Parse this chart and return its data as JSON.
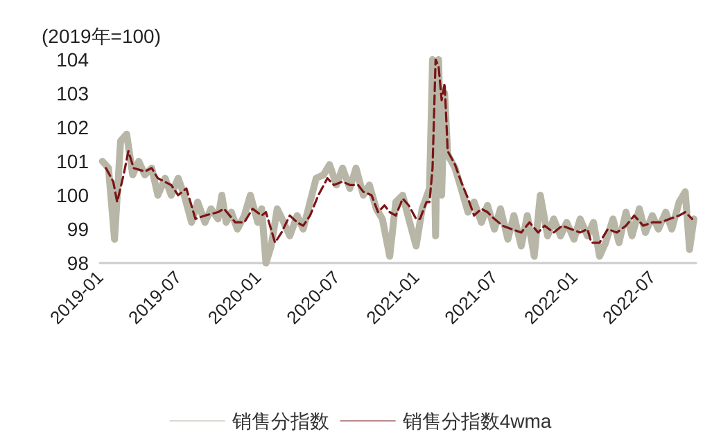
{
  "chart_data": {
    "type": "line",
    "ylabel": "(2019年=100)",
    "xlim": [
      "2019-01-01",
      "2022-10-10"
    ],
    "xticks": [
      "2019-01",
      "2019-07",
      "2020-01",
      "2020-07",
      "2021-01",
      "2021-07",
      "2022-01",
      "2022-07"
    ],
    "ylim": [
      98,
      104
    ],
    "yticks": [
      98,
      99,
      100,
      101,
      102,
      103,
      104
    ],
    "grid": false,
    "legend": "bottom",
    "marker": "none",
    "series": [
      {
        "name": "销售分指数",
        "color": "#b8b6a6",
        "line_style": "solid",
        "x": [
          "2019-01-07",
          "2019-01-21",
          "2019-02-04",
          "2019-02-18",
          "2019-03-04",
          "2019-03-18",
          "2019-04-01",
          "2019-04-15",
          "2019-05-01",
          "2019-05-15",
          "2019-06-01",
          "2019-06-15",
          "2019-07-01",
          "2019-07-15",
          "2019-08-01",
          "2019-08-15",
          "2019-09-01",
          "2019-09-15",
          "2019-10-01",
          "2019-10-10",
          "2019-10-20",
          "2019-11-01",
          "2019-11-15",
          "2019-12-01",
          "2019-12-15",
          "2020-01-01",
          "2020-01-10",
          "2020-01-20",
          "2020-02-01",
          "2020-02-15",
          "2020-03-01",
          "2020-03-15",
          "2020-04-01",
          "2020-04-15",
          "2020-05-01",
          "2020-05-15",
          "2020-06-01",
          "2020-06-15",
          "2020-07-01",
          "2020-07-15",
          "2020-08-01",
          "2020-08-15",
          "2020-09-01",
          "2020-09-15",
          "2020-10-01",
          "2020-10-15",
          "2020-11-01",
          "2020-11-15",
          "2020-12-01",
          "2020-12-15",
          "2021-01-01",
          "2021-01-15",
          "2021-02-01",
          "2021-02-08",
          "2021-02-15",
          "2021-02-22",
          "2021-03-01",
          "2021-03-08",
          "2021-03-15",
          "2021-04-01",
          "2021-04-15",
          "2021-05-01",
          "2021-05-15",
          "2021-06-01",
          "2021-06-15",
          "2021-07-01",
          "2021-07-15",
          "2021-08-01",
          "2021-08-15",
          "2021-09-01",
          "2021-09-15",
          "2021-10-01",
          "2021-10-15",
          "2021-11-01",
          "2021-11-15",
          "2021-12-01",
          "2021-12-15",
          "2022-01-01",
          "2022-01-15",
          "2022-02-01",
          "2022-02-15",
          "2022-03-01",
          "2022-03-15",
          "2022-04-01",
          "2022-04-15",
          "2022-05-01",
          "2022-05-15",
          "2022-06-01",
          "2022-06-15",
          "2022-07-01",
          "2022-07-15",
          "2022-08-01",
          "2022-08-15",
          "2022-09-01",
          "2022-09-15",
          "2022-09-25",
          "2022-10-05"
        ],
        "values": [
          101.0,
          100.8,
          98.7,
          101.6,
          101.8,
          100.6,
          101.0,
          100.6,
          100.8,
          100.0,
          100.5,
          100.0,
          100.5,
          100.0,
          99.2,
          99.8,
          99.2,
          99.6,
          99.3,
          100.0,
          99.2,
          99.5,
          99.0,
          99.4,
          100.0,
          99.2,
          99.6,
          98.0,
          98.5,
          99.6,
          99.2,
          98.8,
          99.4,
          99.0,
          99.8,
          100.5,
          100.6,
          100.9,
          100.3,
          100.8,
          100.2,
          100.8,
          100.0,
          100.3,
          99.6,
          99.3,
          98.2,
          99.8,
          100.0,
          99.3,
          98.5,
          99.6,
          100.2,
          104.0,
          98.8,
          104.0,
          100.0,
          103.0,
          101.2,
          100.8,
          100.2,
          99.5,
          99.8,
          99.2,
          99.7,
          99.0,
          99.6,
          98.7,
          99.4,
          98.5,
          99.4,
          98.2,
          100.0,
          98.8,
          99.3,
          98.8,
          99.2,
          98.7,
          99.3,
          98.8,
          99.2,
          98.2,
          98.6,
          99.3,
          98.6,
          99.5,
          98.8,
          99.6,
          98.9,
          99.4,
          99.0,
          99.5,
          99.0,
          99.8,
          100.1,
          98.4,
          99.3
        ]
      },
      {
        "name": "销售分指数4wma",
        "color": "#7b1416",
        "line_style": "dashed",
        "x": [
          "2019-01-15",
          "2019-02-01",
          "2019-02-10",
          "2019-02-25",
          "2019-03-08",
          "2019-03-20",
          "2019-04-15",
          "2019-05-01",
          "2019-05-15",
          "2019-06-15",
          "2019-07-01",
          "2019-07-20",
          "2019-08-10",
          "2019-09-01",
          "2019-10-01",
          "2019-10-15",
          "2019-11-10",
          "2019-12-01",
          "2019-12-20",
          "2020-01-10",
          "2020-01-20",
          "2020-02-10",
          "2020-02-25",
          "2020-03-15",
          "2020-04-01",
          "2020-04-15",
          "2020-05-01",
          "2020-05-20",
          "2020-06-10",
          "2020-06-25",
          "2020-07-15",
          "2020-08-01",
          "2020-08-20",
          "2020-09-01",
          "2020-09-20",
          "2020-10-05",
          "2020-10-20",
          "2020-11-01",
          "2020-11-15",
          "2020-12-01",
          "2020-12-15",
          "2021-01-01",
          "2021-01-10",
          "2021-01-25",
          "2021-02-01",
          "2021-02-08",
          "2021-02-15",
          "2021-02-22",
          "2021-03-01",
          "2021-03-08",
          "2021-03-15",
          "2021-04-01",
          "2021-04-15",
          "2021-05-01",
          "2021-05-15",
          "2021-06-01",
          "2021-06-15",
          "2021-07-01",
          "2021-07-20",
          "2021-08-10",
          "2021-09-01",
          "2021-09-20",
          "2021-10-10",
          "2021-10-25",
          "2021-11-15",
          "2021-12-05",
          "2021-12-25",
          "2022-01-15",
          "2022-02-01",
          "2022-02-10",
          "2022-03-01",
          "2022-03-20",
          "2022-04-10",
          "2022-05-01",
          "2022-05-20",
          "2022-06-10",
          "2022-07-01",
          "2022-07-20",
          "2022-08-10",
          "2022-09-01",
          "2022-09-15",
          "2022-10-01"
        ],
        "values": [
          100.8,
          100.4,
          99.8,
          100.6,
          101.3,
          100.8,
          100.7,
          100.8,
          100.5,
          100.3,
          100.0,
          100.2,
          99.3,
          99.4,
          99.5,
          99.6,
          99.2,
          99.2,
          99.6,
          99.4,
          99.5,
          98.6,
          98.9,
          99.4,
          99.2,
          99.1,
          99.4,
          100.0,
          100.5,
          100.3,
          100.4,
          100.3,
          100.3,
          100.1,
          100.0,
          99.5,
          99.7,
          99.5,
          99.4,
          99.9,
          99.7,
          99.3,
          99.3,
          99.8,
          99.8,
          100.8,
          104.0,
          103.8,
          102.8,
          103.3,
          101.3,
          100.9,
          100.4,
          99.9,
          99.4,
          99.6,
          99.5,
          99.3,
          99.1,
          99.0,
          98.9,
          99.2,
          98.9,
          99.1,
          98.9,
          99.1,
          99.0,
          98.9,
          99.0,
          98.6,
          98.6,
          99.0,
          98.9,
          99.1,
          99.4,
          99.1,
          99.2,
          99.2,
          99.3,
          99.4,
          99.5,
          99.3
        ]
      }
    ]
  }
}
